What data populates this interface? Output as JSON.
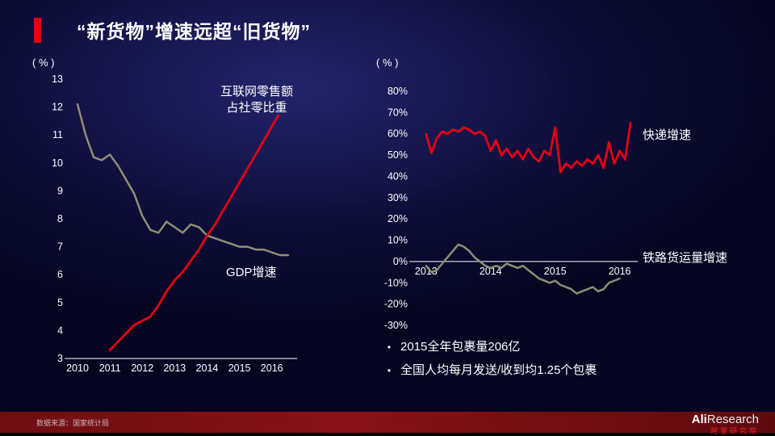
{
  "title": {
    "text": "“新货物”增速远超“旧货物”"
  },
  "colors": {
    "accent_red": "#e60012",
    "olive": "#8f8f72",
    "background": "#0b0b34",
    "footer_maroon": "#7a1016"
  },
  "chart_data": [
    {
      "type": "line",
      "unit_label": "( % )",
      "xlim": [
        2009.8,
        2016.78
      ],
      "ylim": [
        3,
        13
      ],
      "yticks": [
        13,
        12,
        11,
        10,
        9,
        8,
        7,
        6,
        5,
        4,
        3
      ],
      "ytick_suffix": "",
      "xticks": [
        2010,
        2011,
        2012,
        2013,
        2014,
        2015,
        2016
      ],
      "axis_value": 3,
      "grid": false,
      "margins": {
        "l": 50,
        "r": 10,
        "t": 12,
        "b": 32
      },
      "series": [
        {
          "id": "gdp-growth-line",
          "name": "GDP增速",
          "color": "#8f8f72",
          "width": 2.5,
          "x": [
            2010,
            2010.25,
            2010.5,
            2010.75,
            2011,
            2011.25,
            2011.5,
            2011.75,
            2012,
            2012.25,
            2012.5,
            2012.75,
            2013,
            2013.25,
            2013.5,
            2013.75,
            2014,
            2014.25,
            2014.5,
            2014.75,
            2015,
            2015.25,
            2015.5,
            2015.75,
            2016,
            2016.25,
            2016.5
          ],
          "y": [
            12.1,
            11.0,
            10.2,
            10.1,
            10.3,
            9.9,
            9.4,
            8.9,
            8.1,
            7.6,
            7.5,
            7.9,
            7.7,
            7.5,
            7.8,
            7.7,
            7.4,
            7.3,
            7.2,
            7.1,
            7.0,
            7.0,
            6.9,
            6.9,
            6.8,
            6.7,
            6.7
          ]
        },
        {
          "id": "internet-retail-share-line",
          "name": "互联网零售额占社零比重",
          "color": "#e60012",
          "width": 2.8,
          "x": [
            2011,
            2011.25,
            2011.5,
            2011.75,
            2012,
            2012.25,
            2012.5,
            2012.75,
            2013,
            2013.25,
            2013.5,
            2013.75,
            2014,
            2014.25,
            2014.5,
            2014.75,
            2015,
            2015.25,
            2015.5,
            2015.75,
            2016,
            2016.2
          ],
          "y": [
            3.3,
            3.6,
            3.9,
            4.2,
            4.35,
            4.5,
            4.9,
            5.4,
            5.8,
            6.1,
            6.5,
            6.9,
            7.4,
            7.8,
            8.3,
            8.8,
            9.3,
            9.8,
            10.3,
            10.8,
            11.3,
            11.7
          ]
        }
      ],
      "annotations": [
        {
          "text": "互联网零售额\n占社零比重"
        },
        {
          "text": "GDP增速"
        }
      ]
    },
    {
      "type": "line",
      "unit_label": "( % )",
      "xlim": [
        2012.84,
        2016.28
      ],
      "ylim": [
        -30,
        80
      ],
      "yticks": [
        80,
        70,
        60,
        50,
        40,
        30,
        20,
        10,
        0,
        -10,
        -20,
        -30
      ],
      "ytick_suffix": "%",
      "xticks": [
        2013,
        2014,
        2015,
        2016
      ],
      "axis_value": 0,
      "grid": false,
      "margins": {
        "l": 65,
        "r": 20,
        "t": 27,
        "b": 53
      },
      "series": [
        {
          "id": "express-delivery-growth-line",
          "name": "快递增速",
          "color": "#e60012",
          "width": 2.8,
          "x": [
            2013,
            2013.083,
            2013.167,
            2013.25,
            2013.333,
            2013.417,
            2013.5,
            2013.583,
            2013.667,
            2013.75,
            2013.833,
            2013.917,
            2014,
            2014.083,
            2014.167,
            2014.25,
            2014.333,
            2014.417,
            2014.5,
            2014.583,
            2014.667,
            2014.75,
            2014.833,
            2014.917,
            2015,
            2015.083,
            2015.167,
            2015.25,
            2015.333,
            2015.417,
            2015.5,
            2015.583,
            2015.667,
            2015.75,
            2015.833,
            2015.917,
            2016,
            2016.083,
            2016.167
          ],
          "y": [
            60,
            51,
            58,
            61,
            60,
            62,
            61,
            63,
            62,
            60,
            61,
            59,
            52,
            57,
            50,
            53,
            49,
            52,
            48,
            53,
            49,
            47,
            52,
            50,
            63,
            42,
            46,
            44,
            47,
            45,
            48,
            46,
            50,
            44,
            56,
            46,
            52,
            48,
            65
          ]
        },
        {
          "id": "railway-freight-growth-line",
          "name": "铁路货运量增速",
          "color": "#8f8f72",
          "width": 2.5,
          "x": [
            2013,
            2013.083,
            2013.167,
            2013.25,
            2013.333,
            2013.417,
            2013.5,
            2013.583,
            2013.667,
            2013.75,
            2013.833,
            2013.917,
            2014,
            2014.083,
            2014.167,
            2014.25,
            2014.333,
            2014.417,
            2014.5,
            2014.583,
            2014.667,
            2014.75,
            2014.833,
            2014.917,
            2015,
            2015.083,
            2015.167,
            2015.25,
            2015.333,
            2015.417,
            2015.5,
            2015.583,
            2015.667,
            2015.75,
            2015.833,
            2015.917,
            2016
          ],
          "y": [
            -2,
            -5,
            -4,
            -1,
            2,
            5,
            8,
            7,
            5,
            2,
            0,
            -2,
            -3,
            -2,
            -3,
            -1,
            -2,
            -3,
            -2,
            -4,
            -6,
            -8,
            -9,
            -10,
            -9,
            -11,
            -12,
            -13,
            -15,
            -14,
            -13,
            -12,
            -14,
            -13,
            -10,
            -9,
            -8
          ]
        }
      ],
      "annotations": [
        {
          "text": "快递增速"
        },
        {
          "text": "铁路货运量增速"
        }
      ]
    }
  ],
  "bullets": {
    "items": [
      {
        "marker": "•",
        "text": "2015全年包裹量206亿"
      },
      {
        "marker": "•",
        "text": "全国人均每月发送/收到均1.25个包裹"
      }
    ]
  },
  "footer": {
    "source": "数据来源：国家统计局",
    "logo_bold": "Ali",
    "logo_light": "Research",
    "logo_cn": "阿里研究院"
  }
}
